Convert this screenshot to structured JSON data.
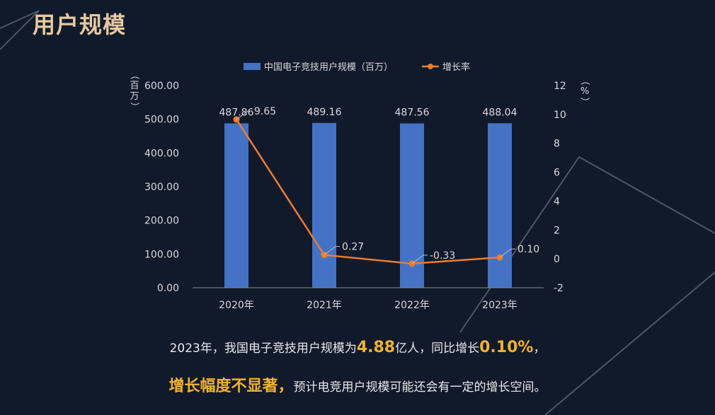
{
  "page": {
    "title": "用户规模"
  },
  "chart_data": {
    "type": "bar",
    "categories": [
      "2020年",
      "2021年",
      "2022年",
      "2023年"
    ],
    "series": [
      {
        "name": "中国电子竞技用户规模（百万）",
        "kind": "bar",
        "axis": "left",
        "values": [
          487.86,
          489.16,
          487.56,
          488.04
        ],
        "color": "#4472c4"
      },
      {
        "name": "增长率",
        "kind": "line",
        "axis": "right",
        "values": [
          9.65,
          0.27,
          -0.33,
          0.1
        ],
        "color": "#ed7d31"
      }
    ],
    "bar_labels": [
      "487.86",
      "489.16",
      "487.56",
      "488.04"
    ],
    "line_labels": [
      "9.65",
      "0.27",
      "-0.33",
      "0.10"
    ],
    "y_left": {
      "label": "（百万）",
      "ylim": [
        0,
        600
      ],
      "ticks": [
        "0.00",
        "100.00",
        "200.00",
        "300.00",
        "400.00",
        "500.00",
        "600.00"
      ]
    },
    "y_right": {
      "label": "（%）",
      "ylim": [
        -2,
        12
      ],
      "ticks": [
        "-2",
        "0",
        "2",
        "4",
        "6",
        "8",
        "10",
        "12"
      ]
    },
    "legend_position": "top-center",
    "grid": false
  },
  "caption": {
    "line1": {
      "before": "2023年，我国电子竞技用户规模为",
      "highlight1": "4.88",
      "middle": "亿人，同比增长",
      "highlight2": "0.10%",
      "after": "，"
    },
    "line2": {
      "highlight": "增长幅度不显著，",
      "rest": "预计电竞用户规模可能还会有一定的增长空间。"
    }
  },
  "colors": {
    "background": "#111a2b",
    "title": "#e6c9a0",
    "highlight": "#f2b230",
    "decor_line": "#6a6f7a",
    "text": "#d9d9d9"
  }
}
